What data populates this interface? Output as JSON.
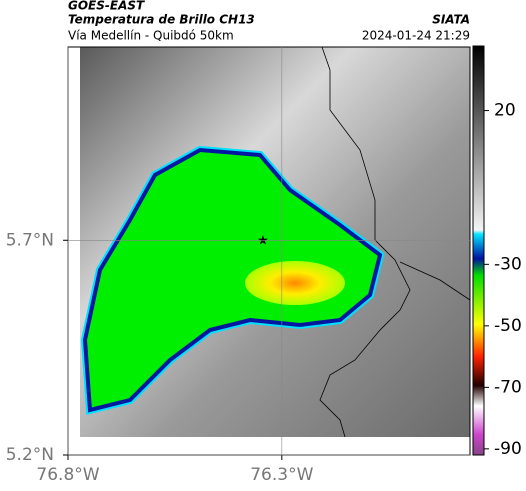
{
  "header": {
    "source": "GOES-EAST",
    "product": "Temperatura de Brillo CH13",
    "agency": "SIATA",
    "route": "Vía Medellín - Quibdó 50km",
    "datetime": "2024-01-24 21:29"
  },
  "map": {
    "xlim": [
      -76.8,
      -75.86
    ],
    "ylim": [
      5.2,
      6.15
    ],
    "xticks": [
      {
        "value": -76.8,
        "label": "76.8°W"
      },
      {
        "value": -76.3,
        "label": "76.3°W"
      }
    ],
    "yticks": [
      {
        "value": 5.2,
        "label": "5.2°N"
      },
      {
        "value": 5.7,
        "label": "5.7°N"
      }
    ],
    "grid": true
  },
  "colorbar": {
    "lim": [
      -92,
      41
    ],
    "ticks": [
      20,
      -30,
      -50,
      -70,
      -90
    ]
  }
}
